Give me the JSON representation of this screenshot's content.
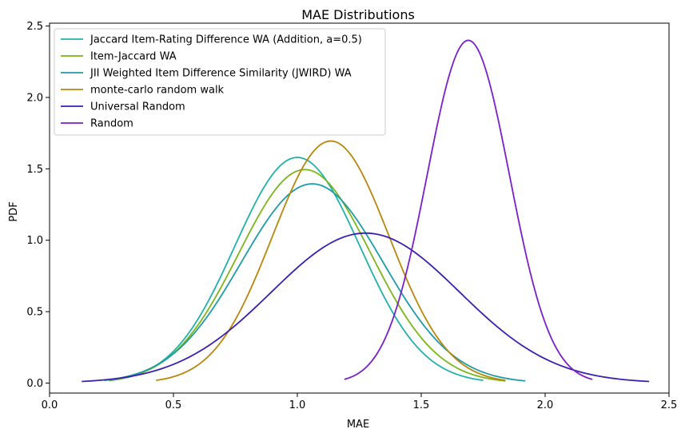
{
  "chart_data": {
    "type": "line",
    "title": "MAE Distributions",
    "xlabel": "MAE",
    "ylabel": "PDF",
    "xlim": [
      0.0,
      2.5
    ],
    "ylim": [
      -0.07,
      2.52
    ],
    "xticks": [
      "0.0",
      "0.5",
      "1.0",
      "1.5",
      "2.0",
      "2.5"
    ],
    "xtick_values": [
      0.0,
      0.5,
      1.0,
      1.5,
      2.0,
      2.5
    ],
    "yticks": [
      "0.0",
      "0.5",
      "1.0",
      "1.5",
      "2.0",
      "2.5"
    ],
    "ytick_values": [
      0.0,
      0.5,
      1.0,
      1.5,
      2.0,
      2.5
    ],
    "grid": false,
    "legend_position": "top-left",
    "series": [
      {
        "name": "Jaccard Item-Rating Difference WA (Addition, a=0.5)",
        "color": "#20b2aa",
        "x_range": [
          0.24,
          1.75
        ],
        "mean": 1.0,
        "peak": 1.58
      },
      {
        "name": "Item-Jaccard WA",
        "color": "#7cb518",
        "x_range": [
          0.24,
          1.84
        ],
        "mean": 1.03,
        "peak": 1.495
      },
      {
        "name": "JII Weighted Item Difference Similarity (JWIRD) WA",
        "color": "#1e9ba8",
        "x_range": [
          0.22,
          1.92
        ],
        "mean": 1.06,
        "peak": 1.395
      },
      {
        "name": "monte-carlo random walk",
        "color": "#b8860b",
        "x_range": [
          0.43,
          1.84
        ],
        "mean": 1.135,
        "peak": 1.695
      },
      {
        "name": "Universal Random",
        "color": "#3a1fb0",
        "x_range": [
          0.13,
          2.42
        ],
        "mean": 1.275,
        "peak": 1.05
      },
      {
        "name": "Random",
        "color": "#7b1fc8",
        "x_range": [
          1.19,
          2.19
        ],
        "mean": 1.69,
        "peak": 2.4
      }
    ]
  }
}
